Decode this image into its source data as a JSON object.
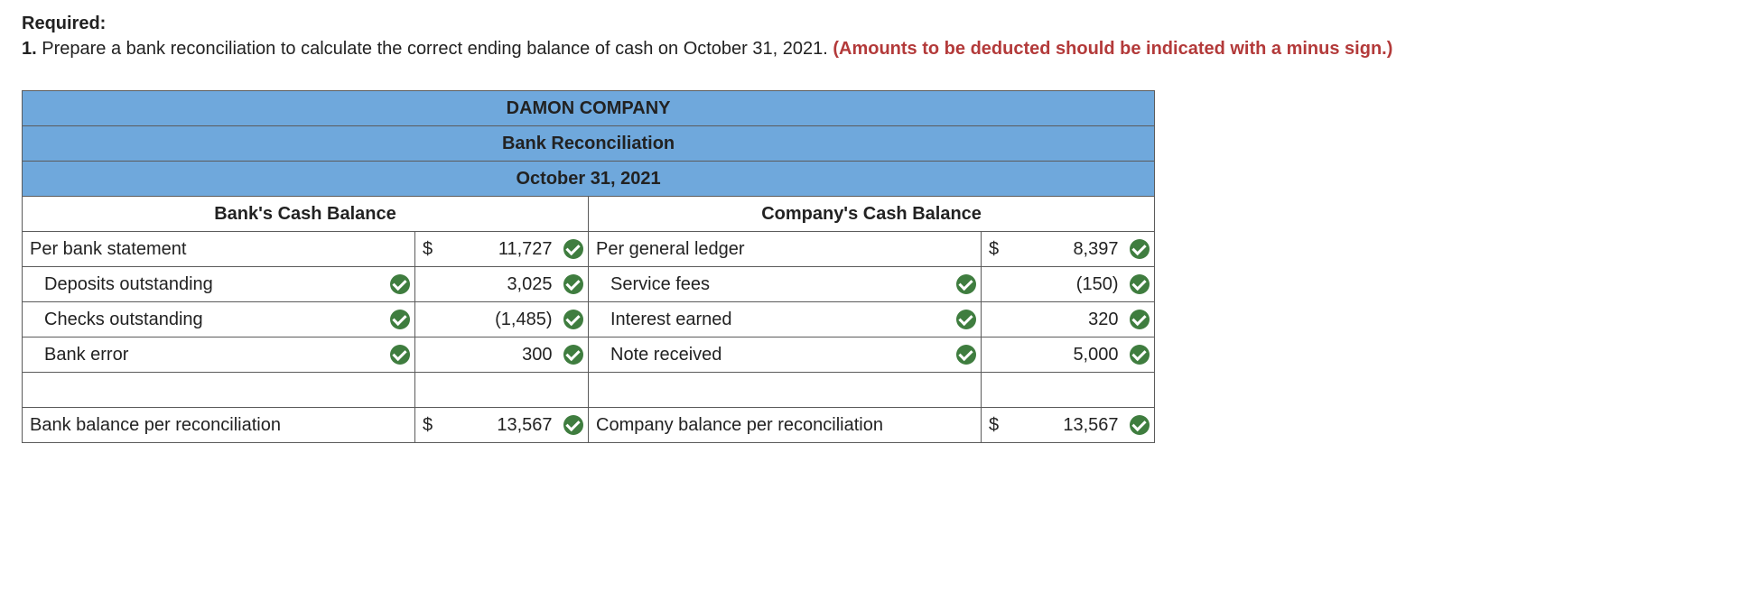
{
  "instructions": {
    "required_label": "Required:",
    "item_number": "1.",
    "text": "Prepare a bank reconciliation to calculate the correct ending balance of cash on October 31, 2021.",
    "warning": "(Amounts to be deducted should be indicated with a minus sign.)"
  },
  "table": {
    "header_company": "DAMON COMPANY",
    "header_title": "Bank Reconciliation",
    "header_date": "October 31, 2021",
    "colors": {
      "header_bg": "#6fa8dc",
      "border": "#5b5b5b",
      "check_bg": "#3f7d3f",
      "warn_text": "#b33a3a"
    },
    "bank_side": {
      "heading": "Bank's Cash Balance",
      "rows": [
        {
          "label": "Per bank statement",
          "value": "11,727",
          "currency": "$",
          "indent": false,
          "label_check": false
        },
        {
          "label": "Deposits outstanding",
          "value": "3,025",
          "currency": "",
          "indent": true,
          "label_check": true
        },
        {
          "label": "Checks outstanding",
          "value": "(1,485)",
          "currency": "",
          "indent": true,
          "label_check": true
        },
        {
          "label": "Bank error",
          "value": "300",
          "currency": "",
          "indent": true,
          "label_check": true
        }
      ],
      "total": {
        "label": "Bank balance per reconciliation",
        "value": "13,567",
        "currency": "$"
      }
    },
    "company_side": {
      "heading": "Company's Cash Balance",
      "rows": [
        {
          "label": "Per general ledger",
          "value": "8,397",
          "currency": "$",
          "indent": false,
          "label_check": false
        },
        {
          "label": "Service fees",
          "value": "(150)",
          "currency": "",
          "indent": true,
          "label_check": true
        },
        {
          "label": "Interest earned",
          "value": "320",
          "currency": "",
          "indent": true,
          "label_check": true
        },
        {
          "label": "Note received",
          "value": "5,000",
          "currency": "",
          "indent": true,
          "label_check": true
        }
      ],
      "total": {
        "label": "Company balance per reconciliation",
        "value": "13,567",
        "currency": "$"
      }
    }
  }
}
